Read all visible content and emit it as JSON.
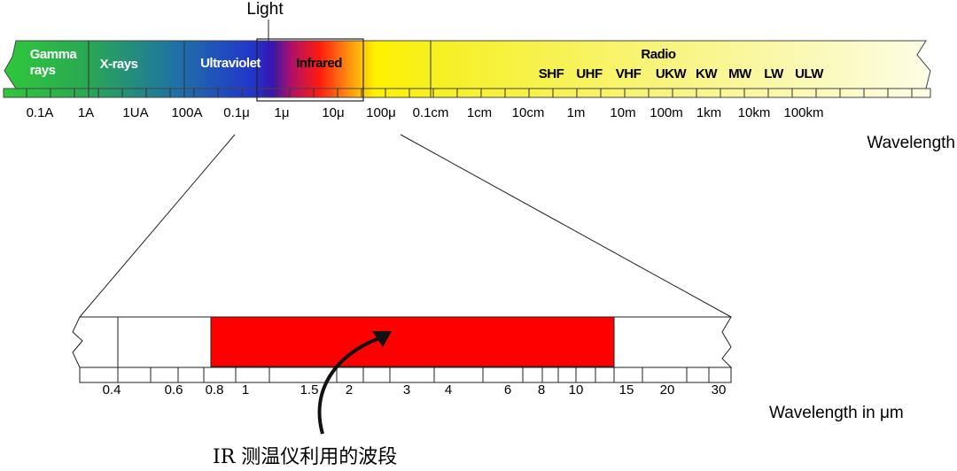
{
  "title": "Light",
  "bands": {
    "gamma": [
      "Gamma",
      "rays"
    ],
    "xrays": "X-rays",
    "uv": "Ultraviolet",
    "ir": "Infrared",
    "radio": "Radio"
  },
  "radio_bands": [
    "SHF",
    "UHF",
    "VHF",
    "UKW",
    "KW",
    "MW",
    "LW",
    "ULW"
  ],
  "spectrum_ticks": [
    "0.1A",
    "1A",
    "1UA",
    "100A",
    "0.1μ",
    "1μ",
    "10μ",
    "100μ",
    "0.1cm",
    "1cm",
    "10cm",
    "1m",
    "10m",
    "100m",
    "1km",
    "10km",
    "100km"
  ],
  "spectrum_axis_label": "Wavelength",
  "zoom_ticks": [
    "0.4",
    "0.6",
    "0.8",
    "1",
    "1.5",
    "2",
    "3",
    "4",
    "6",
    "8",
    "10",
    "15",
    "20",
    "30"
  ],
  "zoom_axis_label": "Wavelength in μm",
  "caption": "IR 测温仪利用的波段"
}
